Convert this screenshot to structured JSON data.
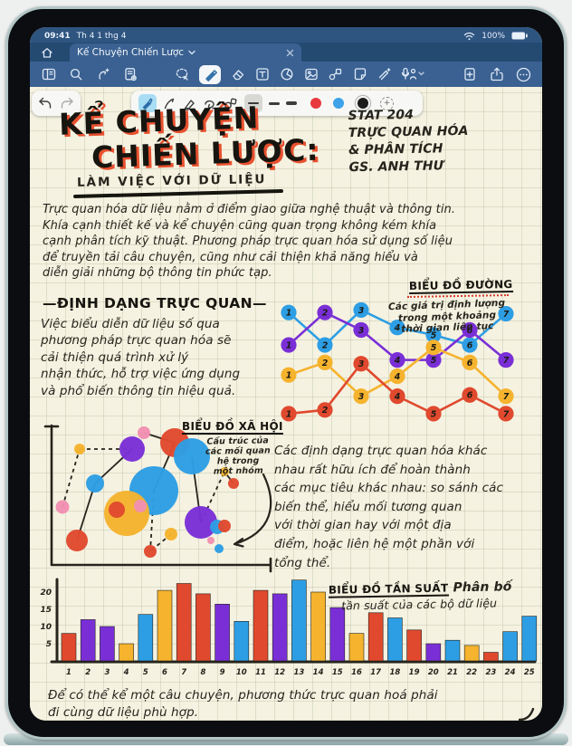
{
  "colors": {
    "red": "#e0492e",
    "purple": "#7a2fd6",
    "yellow": "#f5b32e",
    "blue": "#2d9ee4",
    "pink": "#f290b2",
    "ink": "#26241c",
    "toolbar_blue": "#3a6191",
    "swatch_black": "#1c1c1c"
  },
  "status_bar": {
    "time": "09:41",
    "date": "Th 4 1 thg 4",
    "battery": "100%"
  },
  "tab_bar": {
    "active_tab": "Kế Chuyện Chiến Lược"
  },
  "note": {
    "title_line1": "KỂ CHUYỆN",
    "title_line2": "CHIẾN LƯỢC:",
    "title_line3": "LÀM VIỆC VỚI DỮ LIỆU",
    "course": "STAT 204\nTRỰC QUAN HÓA\n& PHÂN TÍCH\nGS. ANH THƯ",
    "intro": "Trực quan hóa dữ liệu nằm ở điểm giao giữa nghệ thuật và thông tin.\nKhía cạnh thiết kế và kể chuyện cũng quan trọng không kém khía\ncạnh phân tích kỹ thuật. Phương pháp trực quan hóa sử dụng số liệu\nđể truyền tải câu chuyện, cũng như cải thiện khả năng hiểu và\ndiễn giải những bộ thông tin phức tạp.",
    "section_heading": "—ĐỊNH DẠNG TRỰC QUAN—",
    "section_body": "Việc biểu diễn dữ liệu số qua\nphương pháp trực quan hóa sẽ\ncải thiện quá trình xử lý\nnhận thức, hỗ trợ việc ứng dụng\nvà phổ biến thông tin hiệu quả.",
    "formats_body": "Các định dạng trực quan hóa khác\nnhau rất hữu ích để hoàn thành\ncác mục tiêu khác nhau: so sánh các\nbiến thể, hiểu mối tương quan\nvới thời gian hay với một địa\nđiểm, hoặc liên hệ một phần với\ntổng thể.",
    "closing": "Để có thể kể một câu chuyện, phương thức trực quan hoá phải\nđi cùng dữ liệu phù hợp."
  },
  "chart_data": [
    {
      "type": "line",
      "title": "BIỂU ĐỒ ĐƯỜNG",
      "note": "Các giá trị định lượng\ntrong một khoảng\nthời gian liên tục",
      "x": [
        1,
        2,
        3,
        4,
        5,
        6,
        7
      ],
      "series": [
        {
          "name": "blue",
          "color": "#2d9ee4",
          "values": [
            8.9,
            6.3,
            9.1,
            7.7,
            7.1,
            6.3,
            8.8
          ]
        },
        {
          "name": "purple",
          "color": "#7a2fd6",
          "values": [
            6.3,
            8.9,
            7.5,
            5.1,
            5.1,
            7.5,
            5.1
          ]
        },
        {
          "name": "yellow",
          "color": "#f5b32e",
          "values": [
            3.9,
            4.9,
            2.2,
            3.8,
            6.1,
            4.9,
            2.2
          ]
        },
        {
          "name": "red",
          "color": "#e0492e",
          "values": [
            0.8,
            1.1,
            4.8,
            2.2,
            0.8,
            2.3,
            0.8
          ]
        }
      ]
    },
    {
      "type": "bubble-network",
      "title": "BIỂU ĐỒ XÃ HỘI",
      "note": "Cấu trúc của\ncác mối quan\nhệ trong\nmột nhóm",
      "bubbles": [
        [
          114,
          16,
          7,
          "#f290b2"
        ],
        [
          43,
          34,
          6,
          "#f5b32e"
        ],
        [
          101,
          34,
          14,
          "#7a2fd6"
        ],
        [
          148,
          27,
          16,
          "#e0492e"
        ],
        [
          167,
          42,
          20,
          "#2d9ee4"
        ],
        [
          60,
          72,
          10,
          "#2d9ee4"
        ],
        [
          24,
          98,
          7.5,
          "#f290b2"
        ],
        [
          125,
          80,
          27,
          "#2d9ee4"
        ],
        [
          95,
          105,
          25,
          "#f5b32e"
        ],
        [
          84,
          101,
          9,
          "#e0492e"
        ],
        [
          110,
          97,
          7,
          "#f290b2"
        ],
        [
          40,
          135,
          12,
          "#e0492e"
        ],
        [
          177,
          115,
          18,
          "#7a2fd6"
        ],
        [
          195,
          120,
          8,
          "#2d9ee4"
        ],
        [
          203,
          119,
          7,
          "#e0492e"
        ],
        [
          188,
          135,
          4,
          "#f290b2"
        ],
        [
          197,
          144,
          5,
          "#2d9ee4"
        ],
        [
          144,
          128,
          7,
          "#f5b32e"
        ],
        [
          121,
          147,
          7,
          "#e0492e"
        ],
        [
          203,
          59,
          5,
          "#f5b32e"
        ],
        [
          213,
          72,
          6,
          "#e0492e"
        ]
      ],
      "links": [
        [
          1,
          2,
          1
        ],
        [
          6,
          1,
          1
        ],
        [
          5,
          11,
          0
        ],
        [
          5,
          2,
          0
        ],
        [
          0,
          3,
          0
        ],
        [
          4,
          12,
          0
        ],
        [
          7,
          18,
          1
        ],
        [
          12,
          19,
          1
        ],
        [
          19,
          20,
          0
        ],
        [
          17,
          18,
          1
        ],
        [
          3,
          7,
          0
        ]
      ]
    },
    {
      "type": "bar",
      "title": "BIỂU ĐỒ TẦN SUẤT",
      "subtitle_line1": "Phân bố",
      "subtitle_line2": "tần suất của các bộ dữ liệu",
      "categories": [
        1,
        2,
        3,
        4,
        5,
        6,
        7,
        8,
        9,
        10,
        11,
        12,
        13,
        14,
        15,
        16,
        17,
        18,
        19,
        20,
        21,
        22,
        23,
        24,
        25
      ],
      "values": [
        8,
        12,
        10,
        5,
        13.5,
        20.5,
        22.5,
        19.5,
        16.5,
        11.5,
        20.5,
        19.5,
        23.5,
        20,
        15.5,
        8,
        14,
        12.5,
        9,
        5,
        6,
        4.5,
        2.5,
        8.5,
        13
      ],
      "colors": [
        "#e0492e",
        "#7a2fd6",
        "#7a2fd6",
        "#f5b32e",
        "#2d9ee4",
        "#f5b32e",
        "#e0492e",
        "#e0492e",
        "#7a2fd6",
        "#2d9ee4",
        "#e0492e",
        "#7a2fd6",
        "#2d9ee4",
        "#f5b32e",
        "#7a2fd6",
        "#f5b32e",
        "#e0492e",
        "#2d9ee4",
        "#e0492e",
        "#7a2fd6",
        "#2d9ee4",
        "#f5b32e",
        "#e0492e",
        "#2d9ee4",
        "#2d9ee4"
      ],
      "yticks": [
        5,
        10,
        15,
        20
      ],
      "ylim": [
        0,
        25
      ]
    }
  ]
}
